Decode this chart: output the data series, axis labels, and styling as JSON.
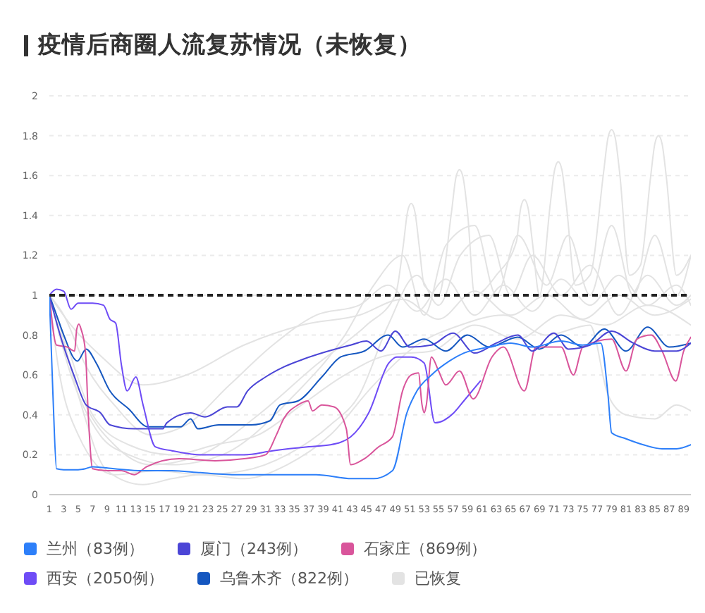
{
  "chart_data": {
    "type": "line",
    "title": "疫情后商圈人流复苏情况（未恢复）",
    "xlim": [
      1,
      90
    ],
    "xticks": [
      1,
      3,
      5,
      7,
      9,
      11,
      13,
      15,
      17,
      19,
      21,
      23,
      25,
      27,
      29,
      31,
      33,
      35,
      37,
      39,
      41,
      43,
      45,
      47,
      49,
      51,
      53,
      55,
      57,
      59,
      61,
      63,
      65,
      67,
      69,
      71,
      73,
      75,
      77,
      79,
      81,
      83,
      85,
      87,
      89
    ],
    "ylim": [
      0,
      2
    ],
    "yticks": [
      0,
      0.2,
      0.4,
      0.6,
      0.8,
      1,
      1.2,
      1.4,
      1.6,
      1.8,
      2
    ],
    "grid": "y",
    "legend": "bottom",
    "marker": "none",
    "ref_lines": [
      {
        "axis": "y",
        "value": 1,
        "color": "#222222",
        "line_style": "dashed"
      }
    ],
    "series": [
      {
        "name": "兰州（83例）",
        "color": "#2d7ff9",
        "x": [
          1,
          1.5,
          2,
          3,
          5,
          6,
          7,
          10,
          14,
          18,
          22,
          27,
          33,
          38,
          43,
          46,
          48.6,
          50.6,
          52,
          54,
          56.5,
          58.5,
          62,
          65,
          68,
          72,
          75,
          77.5,
          78.5,
          79,
          81,
          83.4,
          86,
          88,
          90
        ],
        "values": [
          1,
          0.5,
          0.13,
          0.125,
          0.125,
          0.13,
          0.14,
          0.13,
          0.12,
          0.12,
          0.11,
          0.1,
          0.1,
          0.1,
          0.08,
          0.08,
          0.12,
          0.41,
          0.52,
          0.6,
          0.67,
          0.71,
          0.74,
          0.76,
          0.74,
          0.77,
          0.75,
          0.76,
          0.5,
          0.31,
          0.28,
          0.25,
          0.23,
          0.23,
          0.25
        ]
      },
      {
        "name": "厦门（243例）",
        "color": "#4b45d6",
        "x": [
          1,
          2.5,
          4.5,
          6.1,
          8.1,
          9.4,
          12.8,
          16.7,
          17.3,
          20.6,
          22.6,
          25.7,
          27,
          28.5,
          31,
          33.5,
          36.3,
          38.8,
          42.8,
          45,
          47,
          49,
          51,
          54,
          57,
          60,
          63,
          66,
          68,
          71,
          73,
          76,
          79,
          82,
          85,
          88,
          90
        ],
        "values": [
          1,
          0.8,
          0.59,
          0.45,
          0.41,
          0.35,
          0.33,
          0.33,
          0.36,
          0.41,
          0.39,
          0.44,
          0.44,
          0.52,
          0.59,
          0.64,
          0.68,
          0.71,
          0.75,
          0.77,
          0.72,
          0.82,
          0.74,
          0.75,
          0.81,
          0.71,
          0.76,
          0.8,
          0.72,
          0.81,
          0.73,
          0.75,
          0.82,
          0.76,
          0.72,
          0.72,
          0.76
        ]
      },
      {
        "name": "石家庄（869例）",
        "color": "#d9559b",
        "x": [
          1,
          2,
          3.5,
          4.5,
          4.8,
          5.1,
          5.4,
          6,
          6.4,
          7,
          9,
          11,
          12.8,
          14.5,
          19,
          24,
          28,
          31,
          32.5,
          33.5,
          35.5,
          36.9,
          37.5,
          38.8,
          40.5,
          42.2,
          42.8,
          44.7,
          46.7,
          48.6,
          50,
          51.2,
          52.2,
          52.7,
          53,
          53.3,
          54,
          55,
          56,
          57.9,
          59.8,
          62.4,
          64,
          66.9,
          68.5,
          72,
          73.7,
          75,
          79,
          81,
          82.5,
          84.5,
          86,
          87.9,
          89,
          90
        ],
        "values": [
          1,
          0.75,
          0.74,
          0.72,
          0.83,
          0.855,
          0.83,
          0.72,
          0.4,
          0.13,
          0.12,
          0.12,
          0.1,
          0.14,
          0.18,
          0.17,
          0.18,
          0.2,
          0.3,
          0.38,
          0.45,
          0.47,
          0.42,
          0.45,
          0.44,
          0.33,
          0.15,
          0.18,
          0.24,
          0.29,
          0.52,
          0.6,
          0.61,
          0.45,
          0.41,
          0.45,
          0.69,
          0.62,
          0.55,
          0.62,
          0.48,
          0.69,
          0.74,
          0.52,
          0.74,
          0.74,
          0.6,
          0.74,
          0.78,
          0.62,
          0.78,
          0.8,
          0.72,
          0.57,
          0.72,
          0.79
        ]
      },
      {
        "name": "西安（2050例）",
        "color": "#6e4cf6",
        "x": [
          1,
          2,
          3,
          4,
          5,
          7,
          8.5,
          9.4,
          10.2,
          11,
          11.8,
          13,
          14,
          15.7,
          18,
          22,
          28,
          32,
          37,
          40,
          42.8,
          45.3,
          48.1,
          49.2,
          51.2,
          53,
          54.5,
          57.1,
          58.5,
          60.8
        ],
        "values": [
          1,
          1.03,
          1.02,
          0.93,
          0.96,
          0.96,
          0.95,
          0.88,
          0.86,
          0.65,
          0.52,
          0.59,
          0.45,
          0.24,
          0.22,
          0.2,
          0.2,
          0.22,
          0.24,
          0.25,
          0.29,
          0.41,
          0.66,
          0.69,
          0.69,
          0.66,
          0.36,
          0.41,
          0.47,
          0.57
        ]
      },
      {
        "name": "乌鲁木齐（822例）",
        "color": "#1557c0",
        "x": [
          1,
          2,
          3,
          4.9,
          6.1,
          7.5,
          9.4,
          12,
          14.7,
          19.2,
          20.6,
          21.6,
          24.5,
          29,
          31.6,
          33,
          35.5,
          38.8,
          41.4,
          44.7,
          48,
          50,
          53,
          56,
          59,
          62,
          66,
          69,
          72,
          75,
          78,
          81,
          84,
          87,
          90
        ],
        "values": [
          1,
          0.9,
          0.8,
          0.67,
          0.73,
          0.66,
          0.52,
          0.43,
          0.34,
          0.34,
          0.38,
          0.33,
          0.35,
          0.35,
          0.37,
          0.45,
          0.47,
          0.59,
          0.69,
          0.72,
          0.8,
          0.74,
          0.78,
          0.72,
          0.8,
          0.74,
          0.79,
          0.73,
          0.8,
          0.74,
          0.83,
          0.72,
          0.84,
          0.74,
          0.76
        ]
      },
      {
        "name": "已恢复",
        "color": "#e3e3e3",
        "x": [
          1,
          3,
          6,
          10,
          15,
          22,
          30,
          38,
          45,
          49,
          50.1,
          50.7,
          51.2,
          51.7,
          52.3,
          53,
          55,
          56.8,
          57.4,
          57.9,
          58.4,
          59,
          60,
          63,
          65.8,
          66.4,
          66.9,
          67.4,
          68,
          69,
          70.5,
          71.1,
          71.6,
          72.1,
          72.7,
          74,
          76,
          77.9,
          78.5,
          79,
          79.5,
          80.1,
          81.5,
          83,
          84.4,
          85,
          85.5,
          86,
          86.6,
          88,
          90
        ],
        "values": [
          1,
          0.75,
          0.45,
          0.25,
          0.15,
          0.2,
          0.4,
          0.65,
          0.85,
          1.0,
          1.25,
          1.42,
          1.46,
          1.42,
          1.25,
          1.05,
          1.0,
          1.42,
          1.59,
          1.63,
          1.59,
          1.42,
          1.0,
          1.1,
          1.27,
          1.44,
          1.48,
          1.44,
          1.27,
          1.0,
          1.46,
          1.63,
          1.67,
          1.63,
          1.46,
          1.05,
          1.1,
          1.62,
          1.79,
          1.83,
          1.79,
          1.62,
          1.1,
          1.15,
          1.59,
          1.76,
          1.8,
          1.76,
          1.59,
          1.1,
          1.2
        ]
      },
      {
        "color": "#e3e3e3",
        "x": [
          1,
          4,
          8,
          12,
          18,
          25,
          35,
          42,
          46,
          50,
          53,
          56,
          60,
          63,
          66,
          70,
          73,
          76,
          79,
          82,
          85,
          88,
          90
        ],
        "values": [
          1,
          0.6,
          0.3,
          0.2,
          0.15,
          0.2,
          0.5,
          0.8,
          1.05,
          1.2,
          0.9,
          1.25,
          1.35,
          1.0,
          1.3,
          1.05,
          1.3,
          1.0,
          1.35,
          1.0,
          1.3,
          1.0,
          1.2
        ]
      },
      {
        "color": "#e3e3e3",
        "x": [
          1,
          3,
          6,
          10,
          15,
          20,
          26,
          32,
          38,
          44,
          48,
          52,
          56,
          60,
          64,
          68,
          72,
          76,
          80,
          84,
          88,
          90
        ],
        "values": [
          1,
          0.9,
          0.65,
          0.45,
          0.3,
          0.35,
          0.55,
          0.75,
          0.9,
          0.95,
          1.05,
          0.92,
          1.08,
          0.9,
          1.05,
          0.92,
          1.08,
          0.95,
          1.1,
          0.95,
          1.05,
          0.95
        ]
      },
      {
        "color": "#e3e3e3",
        "x": [
          1,
          2,
          5,
          9,
          14,
          18,
          22,
          28,
          34,
          40,
          46,
          52,
          58,
          64,
          70,
          76,
          78.5,
          81,
          85,
          88,
          90
        ],
        "values": [
          1,
          0.9,
          0.5,
          0.12,
          0.05,
          0.08,
          0.1,
          0.08,
          0.15,
          0.3,
          0.55,
          0.75,
          0.85,
          0.9,
          0.8,
          0.85,
          0.5,
          0.4,
          0.38,
          0.45,
          0.42
        ]
      },
      {
        "color": "#e3e3e3",
        "x": [
          1,
          4,
          8,
          14,
          20,
          28,
          36,
          44,
          50,
          55,
          60,
          65,
          70,
          75,
          80,
          85,
          90
        ],
        "values": [
          1,
          0.85,
          0.7,
          0.55,
          0.6,
          0.75,
          0.85,
          0.9,
          0.98,
          0.88,
          1.02,
          0.9,
          1.0,
          0.88,
          1.0,
          0.9,
          0.98
        ]
      },
      {
        "color": "#e3e3e3",
        "x": [
          1,
          3,
          7,
          12,
          18,
          24,
          30,
          36,
          42,
          48,
          54,
          60,
          66,
          72,
          78,
          84,
          90
        ],
        "values": [
          1,
          0.8,
          0.4,
          0.25,
          0.2,
          0.25,
          0.3,
          0.45,
          0.6,
          0.7,
          0.72,
          0.85,
          0.78,
          0.9,
          0.85,
          0.95,
          0.85
        ]
      },
      {
        "color": "#e3e3e3",
        "x": [
          1,
          2,
          5,
          10,
          16,
          22,
          28,
          34,
          40,
          44,
          48,
          52,
          55,
          58,
          62,
          65,
          68,
          72,
          76,
          80,
          84,
          88,
          90
        ],
        "values": [
          1,
          0.7,
          0.3,
          0.1,
          0.12,
          0.1,
          0.12,
          0.2,
          0.35,
          0.5,
          0.85,
          1.1,
          0.95,
          1.2,
          1.3,
          1.0,
          1.2,
          1.0,
          1.15,
          0.9,
          1.1,
          0.95,
          1.0
        ]
      }
    ]
  }
}
